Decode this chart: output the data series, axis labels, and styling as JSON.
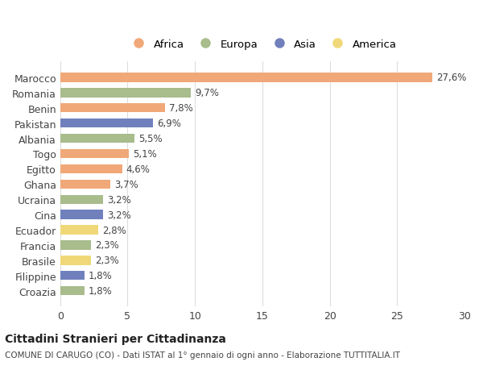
{
  "categories": [
    "Marocco",
    "Romania",
    "Benin",
    "Pakistan",
    "Albania",
    "Togo",
    "Egitto",
    "Ghana",
    "Ucraina",
    "Cina",
    "Ecuador",
    "Francia",
    "Brasile",
    "Filippine",
    "Croazia"
  ],
  "values": [
    27.6,
    9.7,
    7.8,
    6.9,
    5.5,
    5.1,
    4.6,
    3.7,
    3.2,
    3.2,
    2.8,
    2.3,
    2.3,
    1.8,
    1.8
  ],
  "labels": [
    "27,6%",
    "9,7%",
    "7,8%",
    "6,9%",
    "5,5%",
    "5,1%",
    "4,6%",
    "3,7%",
    "3,2%",
    "3,2%",
    "2,8%",
    "2,3%",
    "2,3%",
    "1,8%",
    "1,8%"
  ],
  "colors": [
    "#F0A878",
    "#A8BC8C",
    "#F0A878",
    "#7080BC",
    "#A8BC8C",
    "#F0A878",
    "#F0A878",
    "#F0A878",
    "#A8BC8C",
    "#7080BC",
    "#F0D878",
    "#A8BC8C",
    "#F0D878",
    "#7080BC",
    "#A8BC8C"
  ],
  "continent_labels": [
    "Africa",
    "Europa",
    "Asia",
    "America"
  ],
  "continent_colors": [
    "#F0A878",
    "#A8BC8C",
    "#7080BC",
    "#F0D878"
  ],
  "xlim": [
    0,
    30
  ],
  "xticks": [
    0,
    5,
    10,
    15,
    20,
    25,
    30
  ],
  "title": "Cittadini Stranieri per Cittadinanza",
  "subtitle": "COMUNE DI CARUGO (CO) - Dati ISTAT al 1° gennaio di ogni anno - Elaborazione TUTTITALIA.IT",
  "background_color": "#FFFFFF",
  "grid_color": "#DDDDDD"
}
